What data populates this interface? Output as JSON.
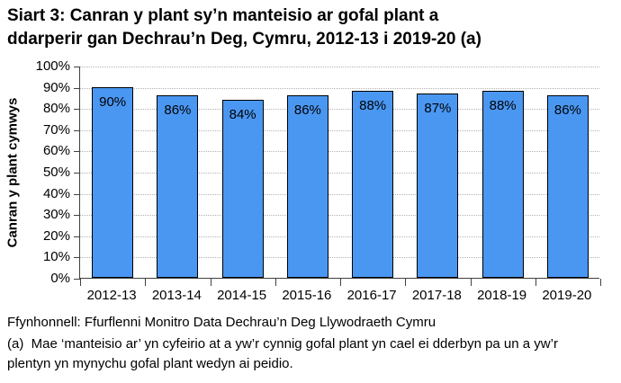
{
  "title": {
    "line1": "Siart 3: Canran y plant sy’n manteisio ar gofal plant a",
    "line2": "ddarperir gan Dechrau’n Deg, Cymru, 2012-13 i 2019-20 (a)"
  },
  "chart_data": {
    "type": "bar",
    "categories": [
      "2012-13",
      "2013-14",
      "2014-15",
      "2015-16",
      "2016-17",
      "2017-18",
      "2018-19",
      "2019-20"
    ],
    "values": [
      90,
      86,
      84,
      86,
      88,
      87,
      88,
      86
    ],
    "bar_labels": [
      "90%",
      "86%",
      "84%",
      "86%",
      "88%",
      "87%",
      "88%",
      "86%"
    ],
    "ylabel": "Canran y plant cymwys",
    "xlabel": "",
    "ylim": [
      0,
      100
    ],
    "ytick_step": 10,
    "ytick_labels": [
      "0%",
      "10%",
      "20%",
      "30%",
      "40%",
      "50%",
      "60%",
      "70%",
      "80%",
      "90%",
      "100%"
    ],
    "grid": "horizontal-dotted",
    "legend": "none",
    "bar_color": "#4a97f2",
    "bar_border_color": "#000000",
    "gridline_color": "#b3b3b3",
    "axis_color": "#404040"
  },
  "footer": {
    "source": "Ffynhonnell: Ffurflenni Monitro Data Dechrau’n Deg Llywodraeth Cymru",
    "note": "(a)  Mae ‘manteisio ar’ yn cyfeirio at a yw’r cynnig gofal plant yn cael ei dderbyn pa un a yw’r plentyn yn mynychu gofal plant wedyn ai peidio."
  }
}
